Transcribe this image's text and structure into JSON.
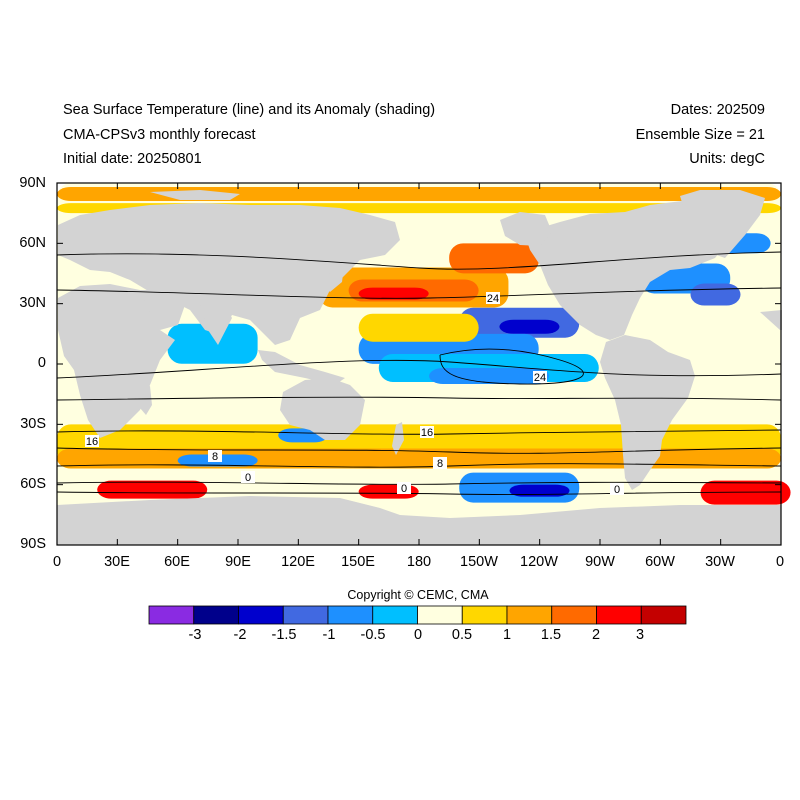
{
  "title": {
    "left_line1": "Sea Surface Temperature (line) and its Anomaly (shading)",
    "left_line2": "CMA-CPSv3 monthly forecast",
    "left_line3": "Initial date: 20250801",
    "right_line1": "Dates: 202509",
    "right_line2": "Ensemble Size = 21",
    "right_line3": "Units: degC"
  },
  "lat_labels": [
    "90N",
    "60N",
    "30N",
    "0",
    "30S",
    "60S",
    "90S"
  ],
  "lon_labels": [
    "0",
    "30E",
    "60E",
    "90E",
    "120E",
    "150E",
    "180",
    "150W",
    "120W",
    "90W",
    "60W",
    "30W",
    "0"
  ],
  "contour_labels": [
    "24",
    "16",
    "16",
    "8",
    "8",
    "0",
    "0",
    "0",
    "24"
  ],
  "copyright": "Copyright © CEMC, CMA",
  "colorbar": {
    "labels": [
      "-3",
      "-2",
      "-1.5",
      "-1",
      "-0.5",
      "0",
      "0.5",
      "1",
      "1.5",
      "2",
      "3"
    ],
    "colors": [
      "#8a2be2",
      "#00008b",
      "#0000cd",
      "#4169e1",
      "#1e90ff",
      "#00bfff",
      "#ffffe0",
      "#ffd700",
      "#ffa500",
      "#ff6a00",
      "#ff0000",
      "#c40000"
    ]
  },
  "land_color": "#d3d3d3"
}
